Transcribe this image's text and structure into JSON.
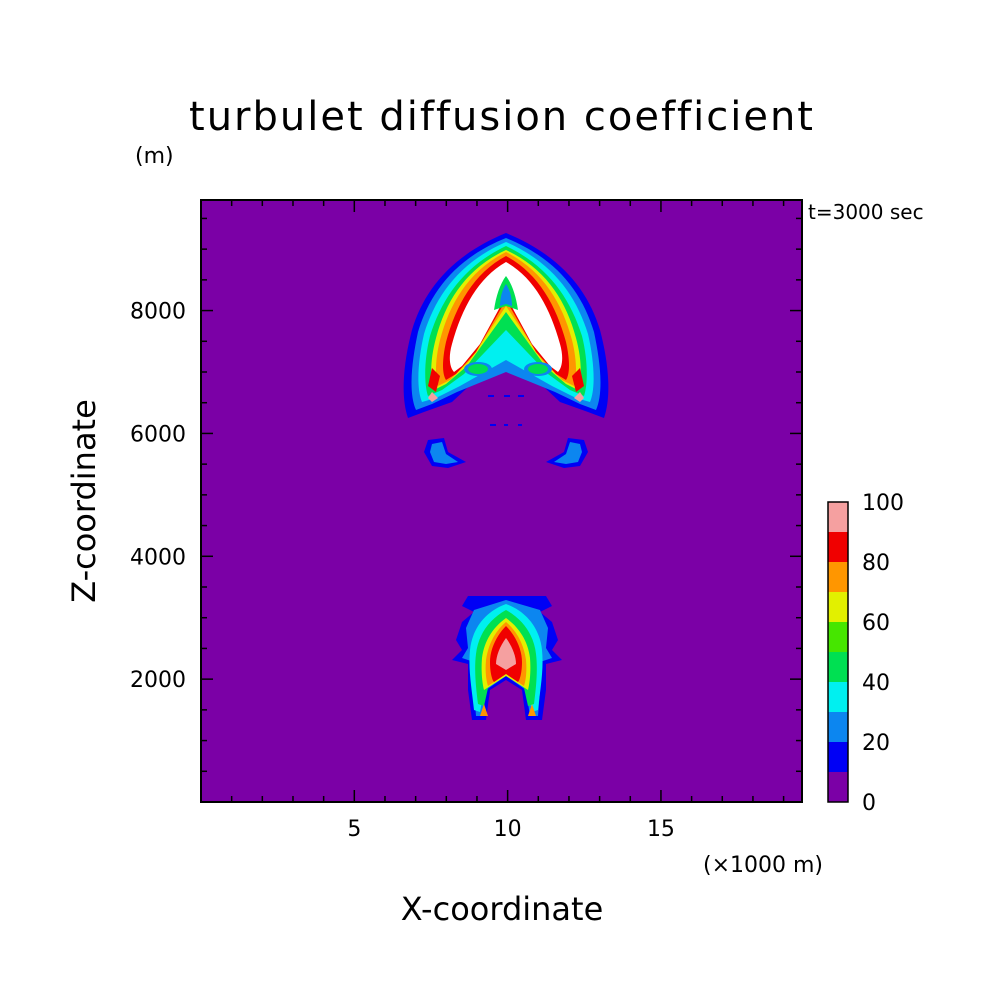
{
  "chart_data": {
    "type": "heatmap",
    "title": "turbulet diffusion coefficient",
    "xlabel": "X-coordinate",
    "ylabel": "Z-coordinate",
    "x_unit": "(×1000 m)",
    "y_unit": "(m)",
    "time_label": "t=3000 sec",
    "xlim": [
      0,
      19.6
    ],
    "ylim": [
      0,
      9800
    ],
    "x_ticks": [
      5,
      10,
      15
    ],
    "y_ticks": [
      2000,
      4000,
      6000,
      8000
    ],
    "colorbar": {
      "levels": [
        0,
        10,
        20,
        30,
        40,
        50,
        60,
        70,
        80,
        90,
        100
      ],
      "labels": [
        "0",
        "20",
        "40",
        "60",
        "80",
        "100"
      ],
      "colors": [
        "#7b00a6",
        "#0000f5",
        "#0c86f0",
        "#00f0f0",
        "#00e052",
        "#46e600",
        "#e2f000",
        "#ff9600",
        "#f00000",
        "#f5a0a0"
      ]
    },
    "background_color": "#7b00a6",
    "above_max_color": "#ffffff"
  }
}
